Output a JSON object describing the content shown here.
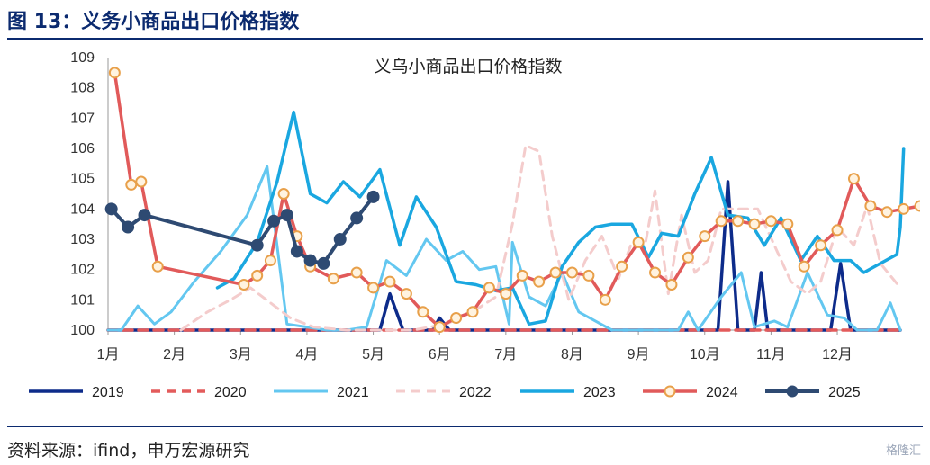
{
  "header": {
    "figure_title": "图 13：义务小商品出口价格指数"
  },
  "footer": {
    "source": "资料来源：ifind，申万宏源研究",
    "watermark": "格隆汇"
  },
  "chart_data": {
    "type": "line",
    "title": "义乌小商品出口价格指数",
    "xlabel": "",
    "ylabel": "",
    "ylim": [
      100,
      109
    ],
    "xlim": [
      1,
      12.95
    ],
    "yticks": [
      100,
      101,
      102,
      103,
      104,
      105,
      106,
      107,
      108,
      109
    ],
    "xticks": [
      {
        "x": 1,
        "label": "1月"
      },
      {
        "x": 2,
        "label": "2月"
      },
      {
        "x": 3,
        "label": "3月"
      },
      {
        "x": 4,
        "label": "4月"
      },
      {
        "x": 5,
        "label": "5月"
      },
      {
        "x": 6,
        "label": "6月"
      },
      {
        "x": 7,
        "label": "7月"
      },
      {
        "x": 8,
        "label": "8月"
      },
      {
        "x": 9,
        "label": "9月"
      },
      {
        "x": 10,
        "label": "10月"
      },
      {
        "x": 11,
        "label": "11月"
      },
      {
        "x": 12,
        "label": "12月"
      }
    ],
    "legend_position": "bottom",
    "series": [
      {
        "name": "2019",
        "color": "#0d2b8a",
        "dash": "",
        "marker": false,
        "width": 3.5,
        "points": [
          [
            1,
            100
          ],
          [
            5.1,
            100
          ],
          [
            5.25,
            101.2
          ],
          [
            5.45,
            100
          ],
          [
            5.9,
            100
          ],
          [
            6,
            100.4
          ],
          [
            6.15,
            100
          ],
          [
            10.2,
            100
          ],
          [
            10.35,
            104.9
          ],
          [
            10.5,
            100
          ],
          [
            10.75,
            100
          ],
          [
            10.85,
            101.9
          ],
          [
            10.95,
            100
          ],
          [
            11.9,
            100
          ],
          [
            12.05,
            102.2
          ],
          [
            12.2,
            100
          ],
          [
            12.95,
            100
          ]
        ]
      },
      {
        "name": "2020",
        "color": "#e35b5b",
        "dash": "10,7",
        "marker": false,
        "width": 3.5,
        "points": [
          [
            1,
            100
          ],
          [
            12.95,
            100
          ]
        ]
      },
      {
        "name": "2021",
        "color": "#63c7f0",
        "dash": "",
        "marker": false,
        "width": 3,
        "points": [
          [
            1,
            100
          ],
          [
            1.2,
            100
          ],
          [
            1.45,
            100.8
          ],
          [
            1.7,
            100.2
          ],
          [
            1.95,
            100.6
          ],
          [
            2.3,
            101.6
          ],
          [
            2.7,
            102.6
          ],
          [
            3.1,
            103.8
          ],
          [
            3.4,
            105.4
          ],
          [
            3.7,
            100.2
          ],
          [
            4.0,
            100.1
          ],
          [
            4.3,
            100
          ],
          [
            4.6,
            100
          ],
          [
            4.9,
            100.1
          ],
          [
            5.2,
            102.3
          ],
          [
            5.5,
            101.8
          ],
          [
            5.8,
            103
          ],
          [
            6.1,
            102.3
          ],
          [
            6.35,
            102.6
          ],
          [
            6.6,
            102
          ],
          [
            6.85,
            102.1
          ],
          [
            7.05,
            100.2
          ],
          [
            7.1,
            102.9
          ],
          [
            7.35,
            101.1
          ],
          [
            7.6,
            100.8
          ],
          [
            7.85,
            101.9
          ],
          [
            8.1,
            100.6
          ],
          [
            8.35,
            100.3
          ],
          [
            8.6,
            100
          ],
          [
            9.6,
            100
          ],
          [
            9.75,
            100.6
          ],
          [
            9.9,
            100
          ],
          [
            10.25,
            101.1
          ],
          [
            10.55,
            101.9
          ],
          [
            10.75,
            100.1
          ],
          [
            11.05,
            100.3
          ],
          [
            11.25,
            100.1
          ],
          [
            11.55,
            101.9
          ],
          [
            11.85,
            100.5
          ],
          [
            12.1,
            100.4
          ],
          [
            12.3,
            100
          ],
          [
            12.6,
            100
          ],
          [
            12.8,
            100.9
          ],
          [
            12.95,
            100
          ]
        ]
      },
      {
        "name": "2022",
        "color": "#f4cccc",
        "dash": "10,7",
        "marker": false,
        "width": 3,
        "points": [
          [
            2.1,
            100
          ],
          [
            2.5,
            100.6
          ],
          [
            2.85,
            101
          ],
          [
            3.15,
            101.4
          ],
          [
            3.45,
            100.9
          ],
          [
            3.75,
            100.4
          ],
          [
            4.1,
            100.1
          ],
          [
            4.6,
            100
          ],
          [
            5.1,
            100
          ],
          [
            5.6,
            100
          ],
          [
            6.1,
            100.2
          ],
          [
            6.5,
            100.6
          ],
          [
            6.85,
            101.1
          ],
          [
            7.1,
            103.5
          ],
          [
            7.3,
            106.1
          ],
          [
            7.5,
            105.9
          ],
          [
            7.7,
            103.1
          ],
          [
            7.95,
            101
          ],
          [
            8.2,
            102.3
          ],
          [
            8.45,
            103.1
          ],
          [
            8.7,
            101.7
          ],
          [
            8.9,
            102.9
          ],
          [
            9.1,
            102.8
          ],
          [
            9.25,
            104.6
          ],
          [
            9.45,
            101.2
          ],
          [
            9.65,
            103.8
          ],
          [
            9.85,
            101.9
          ],
          [
            10.05,
            102.3
          ],
          [
            10.25,
            104
          ],
          [
            10.55,
            104
          ],
          [
            10.8,
            104
          ],
          [
            11.05,
            102.8
          ],
          [
            11.3,
            101.6
          ],
          [
            11.55,
            101.2
          ],
          [
            11.75,
            101.6
          ],
          [
            12.0,
            103.4
          ],
          [
            12.25,
            102.8
          ],
          [
            12.45,
            104.1
          ],
          [
            12.65,
            102.2
          ],
          [
            12.95,
            101.4
          ]
        ]
      },
      {
        "name": "2023",
        "color": "#1aa7e0",
        "dash": "",
        "marker": false,
        "width": 3.5,
        "points": [
          [
            2.65,
            101.4
          ],
          [
            2.9,
            101.7
          ],
          [
            3.25,
            102.9
          ],
          [
            3.55,
            104.9
          ],
          [
            3.8,
            107.2
          ],
          [
            4.05,
            104.5
          ],
          [
            4.3,
            104.2
          ],
          [
            4.55,
            104.9
          ],
          [
            4.8,
            104.4
          ],
          [
            5.1,
            105.3
          ],
          [
            5.4,
            102.8
          ],
          [
            5.65,
            104.4
          ],
          [
            5.95,
            103.4
          ],
          [
            6.25,
            101.6
          ],
          [
            6.55,
            101.5
          ],
          [
            6.85,
            101.3
          ],
          [
            7.1,
            101.4
          ],
          [
            7.35,
            100.2
          ],
          [
            7.6,
            100.3
          ],
          [
            7.85,
            102.1
          ],
          [
            8.1,
            102.9
          ],
          [
            8.35,
            103.4
          ],
          [
            8.6,
            103.5
          ],
          [
            8.9,
            103.5
          ],
          [
            9.15,
            102.4
          ],
          [
            9.35,
            103.2
          ],
          [
            9.6,
            103.1
          ],
          [
            9.85,
            104.5
          ],
          [
            10.1,
            105.7
          ],
          [
            10.35,
            103.8
          ],
          [
            10.65,
            103.7
          ],
          [
            10.9,
            102.8
          ],
          [
            11.15,
            103.7
          ],
          [
            11.45,
            102.3
          ],
          [
            11.7,
            103.1
          ],
          [
            11.95,
            102.3
          ],
          [
            12.2,
            102.3
          ],
          [
            12.4,
            101.9
          ],
          [
            12.65,
            102.2
          ],
          [
            12.9,
            102.5
          ],
          [
            12.95,
            103.4
          ],
          [
            13.0,
            106
          ]
        ]
      },
      {
        "name": "2024",
        "color": "#e15a5a",
        "dash": "",
        "marker": true,
        "width": 3.5,
        "points": [
          [
            1.1,
            108.5
          ],
          [
            1.35,
            104.8
          ],
          [
            1.5,
            104.9
          ],
          [
            1.75,
            102.1
          ],
          [
            3.05,
            101.5
          ],
          [
            3.25,
            101.8
          ],
          [
            3.45,
            102.3
          ],
          [
            3.65,
            104.5
          ],
          [
            3.85,
            103.1
          ],
          [
            4.05,
            102.1
          ],
          [
            4.4,
            101.7
          ],
          [
            4.75,
            101.9
          ],
          [
            5.0,
            101.4
          ],
          [
            5.25,
            101.6
          ],
          [
            5.5,
            101.2
          ],
          [
            5.75,
            100.6
          ],
          [
            6.0,
            100.1
          ],
          [
            6.25,
            100.4
          ],
          [
            6.5,
            100.6
          ],
          [
            6.75,
            101.4
          ],
          [
            7.0,
            101.2
          ],
          [
            7.25,
            101.8
          ],
          [
            7.5,
            101.6
          ],
          [
            7.75,
            101.9
          ],
          [
            8.0,
            101.9
          ],
          [
            8.25,
            101.8
          ],
          [
            8.5,
            101
          ],
          [
            8.75,
            102.1
          ],
          [
            9.0,
            102.9
          ],
          [
            9.25,
            101.9
          ],
          [
            9.5,
            101.5
          ],
          [
            9.75,
            102.4
          ],
          [
            10.0,
            103.1
          ],
          [
            10.25,
            103.6
          ],
          [
            10.5,
            103.6
          ],
          [
            10.75,
            103.5
          ],
          [
            11.0,
            103.6
          ],
          [
            11.25,
            103.5
          ],
          [
            11.5,
            102.1
          ],
          [
            11.75,
            102.8
          ],
          [
            12.0,
            103.3
          ],
          [
            12.25,
            105
          ],
          [
            12.5,
            104.1
          ],
          [
            12.75,
            103.9
          ],
          [
            13.0,
            104
          ],
          [
            13.25,
            104.1
          ],
          [
            13.5,
            104.2
          ]
        ]
      },
      {
        "name": "2025",
        "color": "#2e4a72",
        "dash": "",
        "marker": true,
        "width": 4,
        "points": [
          [
            1.05,
            104
          ],
          [
            1.3,
            103.4
          ],
          [
            1.55,
            103.8
          ],
          [
            3.25,
            102.8
          ],
          [
            3.5,
            103.6
          ],
          [
            3.7,
            103.8
          ],
          [
            3.85,
            102.6
          ],
          [
            4.05,
            102.3
          ],
          [
            4.25,
            102.2
          ],
          [
            4.5,
            103
          ],
          [
            4.75,
            103.7
          ],
          [
            5.0,
            104.4
          ]
        ]
      }
    ]
  }
}
